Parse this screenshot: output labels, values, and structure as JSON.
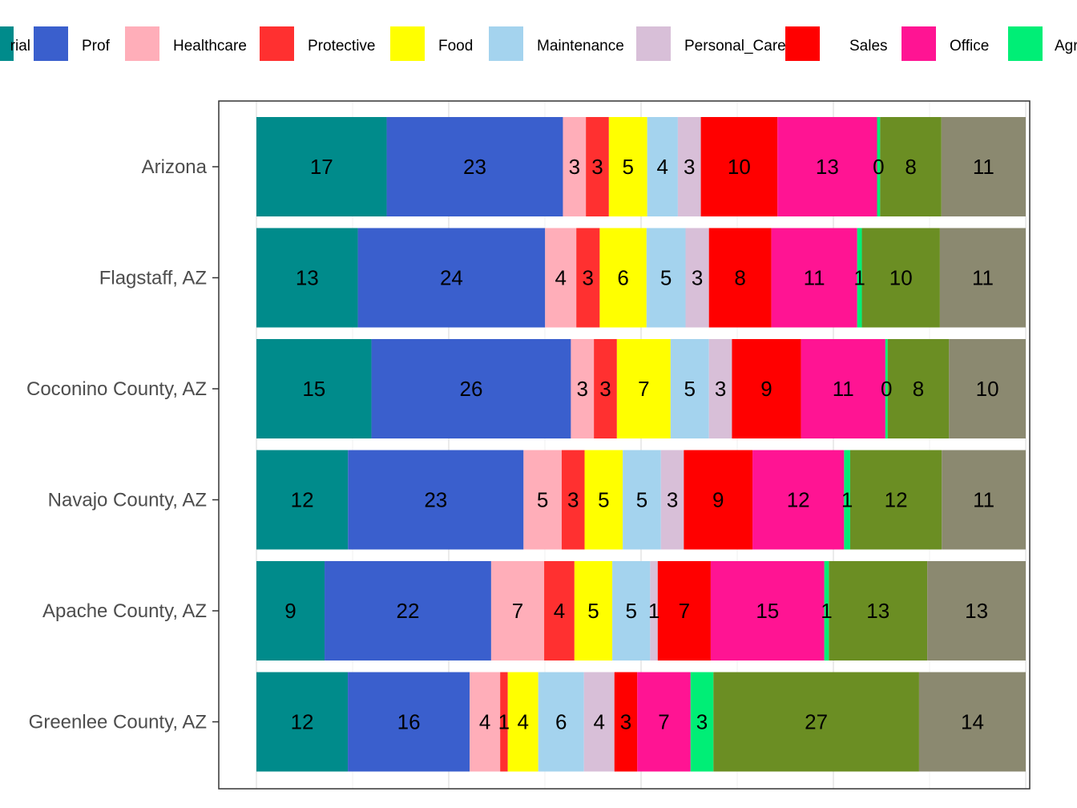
{
  "chart_data": {
    "type": "bar",
    "orientation": "horizontal",
    "stacked": true,
    "normalized_percent": true,
    "title": "",
    "xlabel": "",
    "ylabel": "",
    "grid": true,
    "legend_position": "top",
    "categories": [
      "Arizona",
      "Flagstaff, AZ",
      "Coconino County, AZ",
      "Navajo County, AZ",
      "Apache County, AZ",
      "Greenlee County, AZ"
    ],
    "series": [
      {
        "name": "Managerial",
        "color": "#008B8B",
        "values": [
          17,
          13,
          15,
          12,
          9,
          12
        ],
        "labels": [
          "17",
          "13",
          "15",
          "12",
          "9",
          "12"
        ]
      },
      {
        "name": "Prof",
        "color": "#3A5FCD",
        "values": [
          23,
          24,
          26,
          23,
          22,
          16
        ],
        "labels": [
          "23",
          "24",
          "26",
          "23",
          "22",
          "16"
        ]
      },
      {
        "name": "Healthcare",
        "color": "#FFAEB9",
        "values": [
          3,
          4,
          3,
          5,
          7,
          4
        ],
        "labels": [
          "3",
          "4",
          "3",
          "5",
          "7",
          "4"
        ]
      },
      {
        "name": "Protective",
        "color": "#FF3030",
        "values": [
          3,
          3,
          3,
          3,
          4,
          1
        ],
        "labels": [
          "3",
          "3",
          "3",
          "3",
          "4",
          "1"
        ]
      },
      {
        "name": "Food",
        "color": "#FFFF00",
        "values": [
          5,
          6,
          7,
          5,
          5,
          4
        ],
        "labels": [
          "5",
          "6",
          "7",
          "5",
          "5",
          "4"
        ]
      },
      {
        "name": "Maintenance",
        "color": "#A4D3EE",
        "values": [
          4,
          5,
          5,
          5,
          5,
          6
        ],
        "labels": [
          "4",
          "5",
          "5",
          "5",
          "5",
          "6"
        ]
      },
      {
        "name": "Personal_Care",
        "color": "#D8BFD8",
        "values": [
          3,
          3,
          3,
          3,
          1,
          4
        ],
        "labels": [
          "3",
          "3",
          "3",
          "3",
          "1",
          "4"
        ]
      },
      {
        "name": "Sales",
        "color": "#FF0000",
        "values": [
          10,
          8,
          9,
          9,
          7,
          3
        ],
        "labels": [
          "10",
          "8",
          "9",
          "9",
          "7",
          "3"
        ]
      },
      {
        "name": "Office",
        "color": "#FF1493",
        "values": [
          13,
          11,
          11,
          12,
          15,
          7
        ],
        "labels": [
          "13",
          "11",
          "11",
          "12",
          "15",
          "7"
        ]
      },
      {
        "name": "Agriculture",
        "color": "#00EE76",
        "values": [
          0.4,
          0.6,
          0.3,
          0.8,
          0.6,
          3
        ],
        "labels": [
          "0",
          "1",
          "0",
          "1",
          "1",
          "3"
        ]
      },
      {
        "name": "",
        "color": "#6B8E23",
        "values": [
          8,
          10,
          8,
          12,
          13,
          27
        ],
        "labels": [
          "8",
          "10",
          "8",
          "12",
          "13",
          "27"
        ]
      },
      {
        "name": "",
        "color": "#8B8970",
        "values": [
          11,
          11,
          10,
          11,
          13,
          14
        ],
        "labels": [
          "11",
          "11",
          "10",
          "11",
          "13",
          "14"
        ]
      }
    ],
    "legend_visible_text": [
      "rial",
      "Prof",
      "Healthcare",
      "Protective",
      "Food",
      "Maintenance",
      "Personal_Care",
      "Sales",
      "Office",
      "Agr"
    ]
  }
}
